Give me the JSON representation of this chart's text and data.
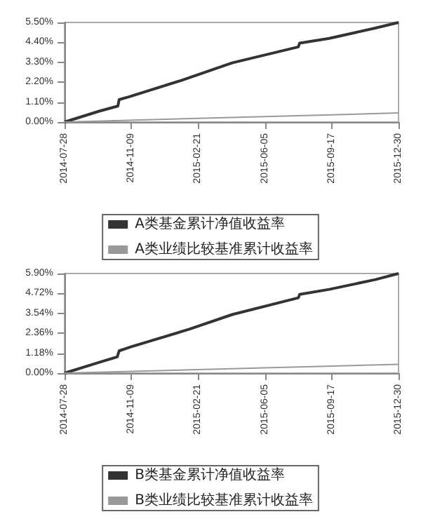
{
  "chart_data": [
    {
      "type": "line",
      "legend": "bottom",
      "xlim": [
        "2014-07-28",
        "2015-12-30"
      ],
      "xticks": [
        "2014-07-28",
        "2014-11-09",
        "2015-02-21",
        "2015-06-05",
        "2015-09-17",
        "2015-12-30"
      ],
      "ylim": [
        0,
        5.5
      ],
      "yticks": [
        {
          "value": 0,
          "label": "0.00%"
        },
        {
          "value": 1.1,
          "label": "1.10%"
        },
        {
          "value": 2.2,
          "label": "2.20%"
        },
        {
          "value": 3.3,
          "label": "3.30%"
        },
        {
          "value": 4.4,
          "label": "4.40%"
        },
        {
          "value": 5.5,
          "label": "5.50%"
        }
      ],
      "grid": false,
      "marker": "none",
      "series": [
        {
          "name": "A类基金累计净值收益率",
          "color": "#333333",
          "x": [
            "2014-07-28",
            "2014-09-20",
            "2014-10-19",
            "2014-10-21",
            "2014-11-05",
            "2015-01-26",
            "2015-04-15",
            "2015-07-27",
            "2015-07-29",
            "2015-09-13",
            "2015-11-24",
            "2015-12-30"
          ],
          "values": [
            0,
            0.6,
            0.88,
            1.24,
            1.39,
            2.3,
            3.27,
            4.15,
            4.36,
            4.62,
            5.19,
            5.5
          ]
        },
        {
          "name": "A类业绩比较基准累计收益率",
          "color": "#999999",
          "x": [
            "2014-07-28",
            "2015-12-30"
          ],
          "values": [
            0,
            0.5
          ]
        }
      ]
    },
    {
      "type": "line",
      "legend": "bottom",
      "xlim": [
        "2014-07-28",
        "2015-12-30"
      ],
      "xticks": [
        "2014-07-28",
        "2014-11-09",
        "2015-02-21",
        "2015-06-05",
        "2015-09-17",
        "2015-12-30"
      ],
      "ylim": [
        0,
        5.9
      ],
      "yticks": [
        {
          "value": 0,
          "label": "0.00%"
        },
        {
          "value": 1.18,
          "label": "1.18%"
        },
        {
          "value": 2.36,
          "label": "2.36%"
        },
        {
          "value": 3.54,
          "label": "3.54%"
        },
        {
          "value": 4.72,
          "label": "4.72%"
        },
        {
          "value": 5.9,
          "label": "5.90%"
        }
      ],
      "grid": false,
      "marker": "none",
      "series": [
        {
          "name": "B类基金累计净值收益率",
          "color": "#333333",
          "x": [
            "2014-07-28",
            "2014-09-20",
            "2014-10-18",
            "2014-10-21",
            "2014-11-08",
            "2015-02-08",
            "2015-04-15",
            "2015-07-27",
            "2015-07-29",
            "2015-09-13",
            "2015-11-24",
            "2015-12-30"
          ],
          "values": [
            0,
            0.64,
            0.96,
            1.32,
            1.55,
            2.61,
            3.47,
            4.46,
            4.66,
            4.96,
            5.54,
            5.9
          ]
        },
        {
          "name": "B类业绩比较基准累计收益率",
          "color": "#999999",
          "x": [
            "2014-07-28",
            "2015-12-30"
          ],
          "values": [
            0,
            0.52
          ]
        }
      ]
    }
  ]
}
